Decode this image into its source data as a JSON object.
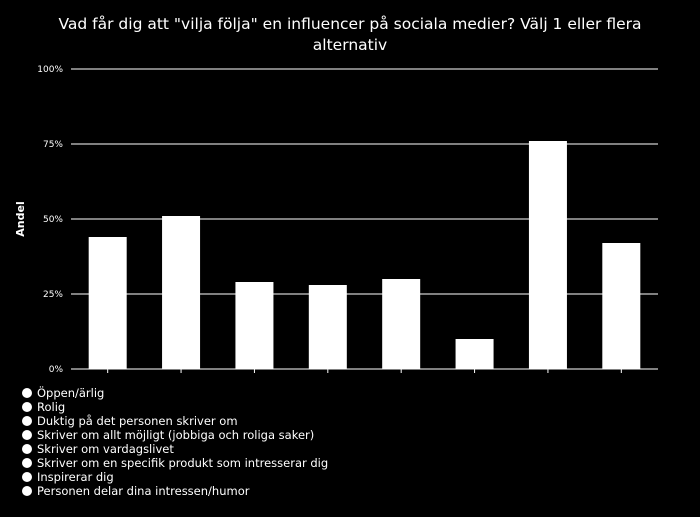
{
  "chart_data": {
    "type": "bar",
    "title": "Vad får dig att \"vilja följa\" en influencer på sociala medier? Välj 1 eller flera alternativ",
    "ylabel": "Andel",
    "xlabel": "",
    "ylim": [
      0,
      100
    ],
    "yticks": [
      "0%",
      "25%",
      "50%",
      "75%",
      "100%"
    ],
    "ytick_values": [
      0,
      25,
      50,
      75,
      100
    ],
    "grid": true,
    "legend_position": "bottom-left",
    "categories": [
      "Öppen/ärlig",
      "Rolig",
      "Duktig på det personen skriver om",
      "Skriver om allt möjligt (jobbiga och roliga saker)",
      "Skriver om vardagslivet",
      "Skriver om en specifik produkt som intresserar dig",
      "Inspirerar dig",
      "Personen delar dina intressen/humor"
    ],
    "values": [
      44,
      51,
      29,
      28,
      30,
      10,
      76,
      42
    ],
    "bar_color": "#ffffff",
    "background": "#000000"
  },
  "legend": {
    "items": [
      "Öppen/ärlig",
      "Rolig",
      "Duktig på det personen skriver om",
      "Skriver om allt möjligt (jobbiga och roliga saker)",
      "Skriver om vardagslivet",
      "Skriver om en specifik produkt som intresserar dig",
      "Inspirerar dig",
      "Personen delar dina intressen/humor"
    ]
  }
}
